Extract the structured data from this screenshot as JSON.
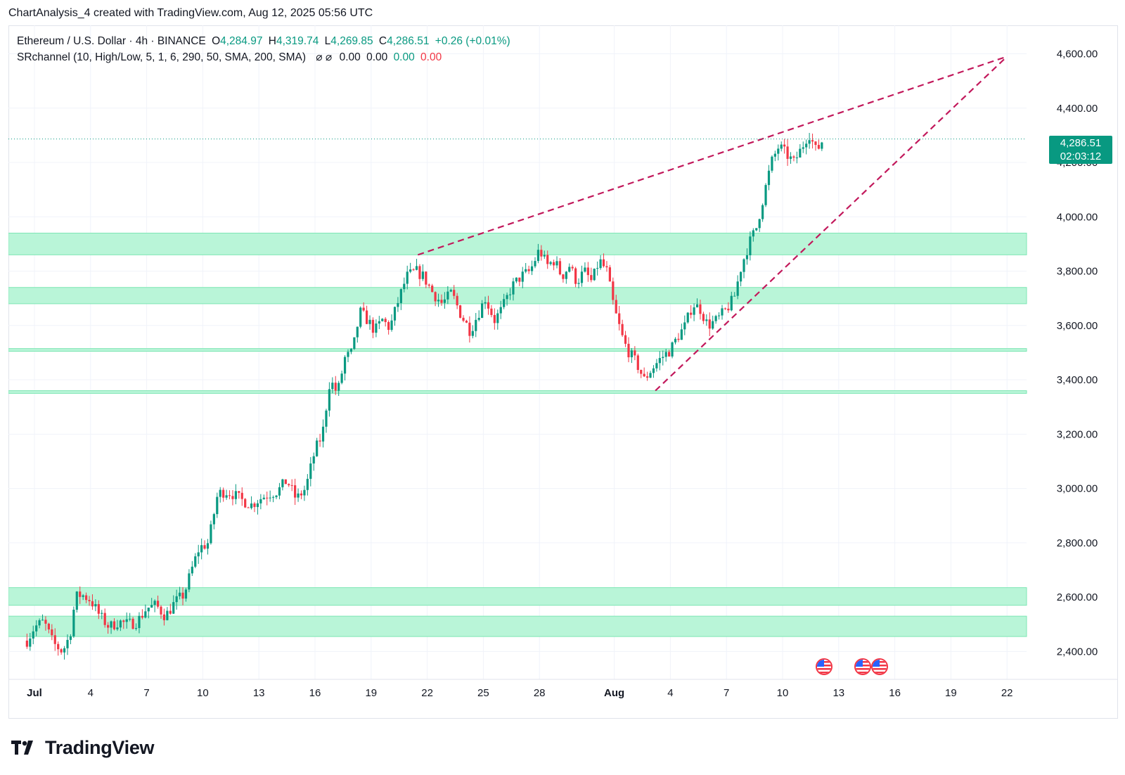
{
  "header": {
    "attribution": "ChartAnalysis_4 created with TradingView.com, Aug 12, 2025 05:56 UTC"
  },
  "legend": {
    "symbol": "Ethereum / U.S. Dollar · 4h · BINANCE",
    "open_label": "O",
    "open": "4,284.97",
    "high_label": "H",
    "high": "4,319.74",
    "low_label": "L",
    "low": "4,269.85",
    "close_label": "C",
    "close": "4,286.51",
    "change": "+0.26 (+0.01%)",
    "indicator": "SRchannel (10, High/Low, 5, 1, 6, 290, 50, SMA, 200, SMA)",
    "indicator_icons": "⌀ ⌀",
    "ind_v1": "0.00",
    "ind_v2": "0.00",
    "ind_v3": "0.00",
    "ind_v4": "0.00"
  },
  "price_tag": {
    "price": "4,286.51",
    "countdown": "02:03:12"
  },
  "brand": {
    "name": "TradingView"
  },
  "colors": {
    "up": "#089981",
    "down": "#f23645",
    "zone": "#b9f5d8",
    "zone_border": "#7ee6b4",
    "trendline": "#c2185b"
  },
  "chart_data": {
    "type": "candlestick",
    "timeframe": "4h",
    "ylim": [
      2340,
      4690
    ],
    "y_ticks": [
      "2,400.00",
      "2,600.00",
      "2,800.00",
      "3,000.00",
      "3,200.00",
      "3,400.00",
      "3,600.00",
      "3,800.00",
      "4,000.00",
      "4,200.00",
      "4,400.00",
      "4,600.00"
    ],
    "x_ticks": [
      {
        "day": 1,
        "label": "Jul"
      },
      {
        "day": 4,
        "label": "4"
      },
      {
        "day": 7,
        "label": "7"
      },
      {
        "day": 10,
        "label": "10"
      },
      {
        "day": 13,
        "label": "13"
      },
      {
        "day": 16,
        "label": "16"
      },
      {
        "day": 19,
        "label": "19"
      },
      {
        "day": 22,
        "label": "22"
      },
      {
        "day": 25,
        "label": "25"
      },
      {
        "day": 28,
        "label": "28"
      },
      {
        "day": 32,
        "label": "Aug"
      },
      {
        "day": 35,
        "label": "4"
      },
      {
        "day": 38,
        "label": "7"
      },
      {
        "day": 41,
        "label": "10"
      },
      {
        "day": 44,
        "label": "13"
      },
      {
        "day": 47,
        "label": "16"
      },
      {
        "day": 50,
        "label": "19"
      },
      {
        "day": 53,
        "label": "22"
      }
    ],
    "close_path": [
      [
        0.6,
        2440
      ],
      [
        1,
        2490
      ],
      [
        1.5,
        2510
      ],
      [
        2,
        2430
      ],
      [
        2.5,
        2400
      ],
      [
        2.9,
        2460
      ],
      [
        3.2,
        2600
      ],
      [
        3.5,
        2610
      ],
      [
        4,
        2590
      ],
      [
        4.5,
        2530
      ],
      [
        5,
        2490
      ],
      [
        5.5,
        2510
      ],
      [
        6,
        2500
      ],
      [
        6.5,
        2510
      ],
      [
        7,
        2560
      ],
      [
        7.5,
        2570
      ],
      [
        8,
        2530
      ],
      [
        8.5,
        2580
      ],
      [
        9,
        2610
      ],
      [
        9.4,
        2700
      ],
      [
        9.8,
        2780
      ],
      [
        10.3,
        2800
      ],
      [
        10.8,
        2980
      ],
      [
        11.2,
        2990
      ],
      [
        11.6,
        2980
      ],
      [
        12,
        2960
      ],
      [
        12.6,
        2940
      ],
      [
        13,
        2960
      ],
      [
        13.5,
        2980
      ],
      [
        14,
        2990
      ],
      [
        14.5,
        3030
      ],
      [
        15,
        2960
      ],
      [
        15.5,
        3000
      ],
      [
        16,
        3140
      ],
      [
        16.4,
        3200
      ],
      [
        16.8,
        3400
      ],
      [
        17.2,
        3350
      ],
      [
        17.6,
        3480
      ],
      [
        18,
        3500
      ],
      [
        18.4,
        3650
      ],
      [
        18.8,
        3620
      ],
      [
        19.2,
        3580
      ],
      [
        19.6,
        3620
      ],
      [
        20,
        3590
      ],
      [
        20.4,
        3680
      ],
      [
        20.9,
        3780
      ],
      [
        21.4,
        3800
      ],
      [
        21.8,
        3780
      ],
      [
        22.3,
        3720
      ],
      [
        22.8,
        3680
      ],
      [
        23.3,
        3720
      ],
      [
        23.8,
        3640
      ],
      [
        24.3,
        3580
      ],
      [
        24.7,
        3640
      ],
      [
        25.1,
        3700
      ],
      [
        25.6,
        3620
      ],
      [
        26,
        3660
      ],
      [
        26.5,
        3740
      ],
      [
        27,
        3780
      ],
      [
        27.5,
        3800
      ],
      [
        28,
        3880
      ],
      [
        28.4,
        3820
      ],
      [
        28.8,
        3840
      ],
      [
        29.2,
        3780
      ],
      [
        29.6,
        3820
      ],
      [
        30,
        3760
      ],
      [
        30.4,
        3800
      ],
      [
        30.8,
        3760
      ],
      [
        31.2,
        3840
      ],
      [
        31.6,
        3800
      ],
      [
        32,
        3660
      ],
      [
        32.5,
        3540
      ],
      [
        32.8,
        3500
      ],
      [
        33.2,
        3460
      ],
      [
        33.6,
        3400
      ],
      [
        34,
        3440
      ],
      [
        34.5,
        3480
      ],
      [
        35,
        3510
      ],
      [
        35.4,
        3560
      ],
      [
        35.8,
        3600
      ],
      [
        36.2,
        3680
      ],
      [
        36.6,
        3660
      ],
      [
        37,
        3600
      ],
      [
        37.5,
        3620
      ],
      [
        38,
        3660
      ],
      [
        38.4,
        3700
      ],
      [
        38.8,
        3820
      ],
      [
        39.2,
        3900
      ],
      [
        39.6,
        3960
      ],
      [
        40,
        4080
      ],
      [
        40.4,
        4200
      ],
      [
        40.8,
        4260
      ],
      [
        41.2,
        4230
      ],
      [
        41.6,
        4200
      ],
      [
        42,
        4250
      ],
      [
        42.4,
        4310
      ],
      [
        42.8,
        4240
      ],
      [
        43.2,
        4290
      ]
    ],
    "sr_zones": [
      {
        "low": 3860,
        "high": 3940
      },
      {
        "low": 3680,
        "high": 3740
      },
      {
        "low": 3505,
        "high": 3515
      },
      {
        "low": 3350,
        "high": 3360
      },
      {
        "low": 2570,
        "high": 2635
      },
      {
        "low": 2455,
        "high": 2530
      }
    ],
    "trendlines": [
      {
        "from": [
          21.5,
          3860
        ],
        "to": [
          53,
          4590
        ]
      },
      {
        "from": [
          34.2,
          3360
        ],
        "to": [
          53,
          4590
        ]
      }
    ],
    "last_price": 4286.51,
    "event_markers_days": [
      43.2,
      45.3,
      46.2
    ]
  }
}
